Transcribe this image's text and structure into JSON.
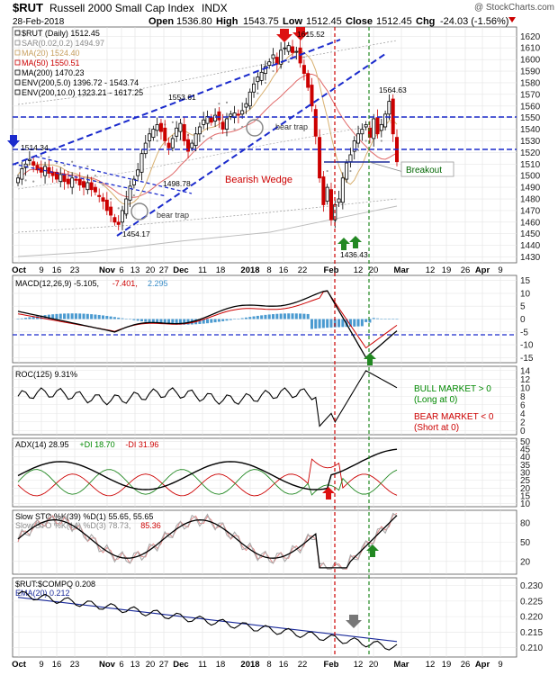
{
  "header": {
    "symbol": "$RUT",
    "name": "Russell 2000 Small Cap Index",
    "exchange": "INDX",
    "watermark": "@ StockCharts.com",
    "date": "28-Feb-2018",
    "open_label": "Open",
    "open": "1536.80",
    "high_label": "High",
    "high": "1543.75",
    "low_label": "Low",
    "low": "1512.45",
    "close_label": "Close",
    "close": "1512.45",
    "chg_label": "Chg",
    "chg": "-24.03 (-1.56%)"
  },
  "x_axis": {
    "labels": [
      "Oct",
      "9",
      "16",
      "23",
      "Nov",
      "6",
      "13",
      "20",
      "27",
      "Dec",
      "11",
      "18",
      "2018",
      "8",
      "16",
      "22",
      "Feb",
      "12",
      "20",
      "Mar",
      "12",
      "19",
      "26",
      "Apr",
      "9"
    ],
    "bold_labels": [
      "Oct",
      "Nov",
      "Dec",
      "2018",
      "Feb",
      "Mar",
      "Apr"
    ]
  },
  "panels": {
    "price": {
      "legend": [
        {
          "text": "$RUT (Daily) 1512.45",
          "color": "#000000"
        },
        {
          "text": "SAR(0.02,0.2) 1494.97",
          "color": "#888888"
        },
        {
          "text": "MA(20) 1524.40",
          "color": "#c8a060"
        },
        {
          "text": "MA(50) 1550.51",
          "color": "#cc0000"
        },
        {
          "text": "MA(200) 1470.23",
          "color": "#000000"
        },
        {
          "text": "ENV(200,5.0) 1396.72 - 1543.74",
          "color": "#000000"
        },
        {
          "text": "ENV(200,10.0) 1323.21 - 1617.25",
          "color": "#000000"
        }
      ],
      "y_ticks": [
        "1620",
        "1610",
        "1600",
        "1590",
        "1580",
        "1570",
        "1560",
        "1550",
        "1540",
        "1530",
        "1520",
        "1510",
        "1500",
        "1490",
        "1480",
        "1470",
        "1460",
        "1450",
        "1440",
        "1430"
      ],
      "annotations": {
        "price_1514": "1514.34",
        "price_1553": "1553.61",
        "price_1615": "1615.52",
        "price_1564": "1564.63",
        "price_1498": "1498.78",
        "price_1454": "1454.17",
        "price_1436": "1436.43",
        "bear_trap_1": "bear trap",
        "bear_trap_2": "bear trap",
        "bearish_wedge": "Bearish Wedge",
        "breakout": "Breakout"
      }
    },
    "macd": {
      "legend": [
        "MACD(12,26,9) -5.105, ",
        "-7.401, ",
        "2.295"
      ],
      "legend_colors": [
        "#000000",
        "#cc0000",
        "#3a8dc8"
      ],
      "y_ticks": [
        "15",
        "10",
        "5",
        "0",
        "-5",
        "-10",
        "-15"
      ]
    },
    "roc": {
      "legend": "ROC(125) 9.31%",
      "y_ticks": [
        "14",
        "12",
        "10",
        "8",
        "6",
        "4",
        "2",
        "0"
      ],
      "bull_lines": [
        "BULL MARKET > 0",
        "(Long at 0)"
      ],
      "bear_lines": [
        "BEAR MARKET < 0",
        "(Short at 0)"
      ],
      "bull_color": "#008800",
      "bear_color": "#cc0000"
    },
    "adx": {
      "legend": [
        "ADX(14) 28.95 ",
        "+DI 18.70 ",
        "-DI 31.96"
      ],
      "legend_colors": [
        "#000000",
        "#008800",
        "#cc0000"
      ],
      "y_ticks": [
        "50",
        "45",
        "40",
        "35",
        "30",
        "25",
        "20",
        "15",
        "10"
      ]
    },
    "sto": {
      "legend_1": "Slow STO %K(39) %D(1) 55.65, 55.65",
      "legend_2": [
        "Slow STO %K(14) %D(3) 78.73, ",
        "85.36"
      ],
      "legend_2_colors": [
        "#888888",
        "#cc0000"
      ],
      "y_ticks": [
        "80",
        "50",
        "20"
      ]
    },
    "ratio": {
      "legend_1": "$RUT:$COMPQ 0.208",
      "legend_2": "EMA(20) 0.212",
      "legend_2_color": "#1a2a9a",
      "y_ticks": [
        "0.230",
        "0.225",
        "0.220",
        "0.215",
        "0.210"
      ]
    }
  },
  "colors": {
    "up": "#000000",
    "down": "#cc0000",
    "trendline": "#1a2acc",
    "arrow_up": "#228822",
    "arrow_down": "#dd1111",
    "vline_red": "#cc0000",
    "vline_green": "#228822"
  }
}
